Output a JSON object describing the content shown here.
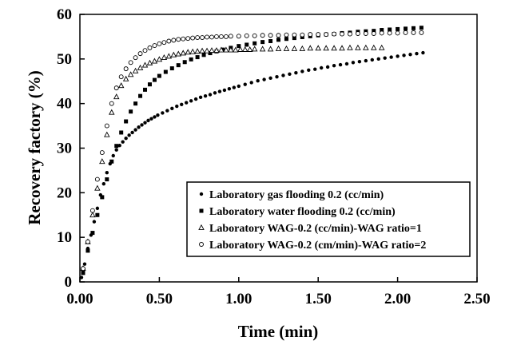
{
  "chart_data": {
    "type": "scatter",
    "xlabel": "Time (min)",
    "ylabel": "Recovery factory (%)",
    "xlim": [
      0,
      2.5
    ],
    "ylim": [
      0,
      60
    ],
    "x_ticks": [
      "0.00",
      "0.50",
      "1.00",
      "1.50",
      "2.00",
      "2.50"
    ],
    "y_ticks": [
      "0",
      "10",
      "20",
      "30",
      "40",
      "50",
      "60"
    ],
    "grid": false,
    "legend_position": "bottom-right",
    "series": [
      {
        "name": "Laboratory gas flooding 0.2 (cc/min)",
        "marker": "filled-circle",
        "x": [
          0.01,
          0.02,
          0.03,
          0.05,
          0.07,
          0.09,
          0.11,
          0.13,
          0.15,
          0.17,
          0.19,
          0.21,
          0.23,
          0.25,
          0.27,
          0.29,
          0.31,
          0.33,
          0.35,
          0.37,
          0.39,
          0.41,
          0.43,
          0.45,
          0.47,
          0.49,
          0.52,
          0.55,
          0.58,
          0.61,
          0.64,
          0.67,
          0.7,
          0.73,
          0.76,
          0.79,
          0.82,
          0.85,
          0.88,
          0.91,
          0.94,
          0.97,
          1.0,
          1.04,
          1.08,
          1.12,
          1.16,
          1.2,
          1.24,
          1.28,
          1.32,
          1.36,
          1.4,
          1.44,
          1.48,
          1.52,
          1.56,
          1.6,
          1.64,
          1.68,
          1.72,
          1.76,
          1.8,
          1.84,
          1.88,
          1.92,
          1.96,
          2.0,
          2.04,
          2.08,
          2.12,
          2.16
        ],
        "y": [
          1,
          2.5,
          4,
          7.5,
          10.5,
          13.5,
          16.5,
          19.5,
          22,
          24.5,
          26.5,
          28.3,
          29.6,
          30.6,
          31.4,
          32.2,
          32.9,
          33.5,
          34.1,
          34.7,
          35.2,
          35.7,
          36.2,
          36.6,
          37.0,
          37.4,
          37.9,
          38.4,
          38.9,
          39.4,
          39.8,
          40.2,
          40.6,
          41.0,
          41.4,
          41.7,
          42.0,
          42.4,
          42.7,
          43.0,
          43.3,
          43.6,
          43.9,
          44.3,
          44.7,
          45.1,
          45.4,
          45.7,
          46.0,
          46.3,
          46.6,
          46.9,
          47.2,
          47.5,
          47.7,
          48.0,
          48.2,
          48.5,
          48.7,
          48.9,
          49.2,
          49.4,
          49.6,
          49.8,
          50.0,
          50.2,
          50.4,
          50.6,
          50.8,
          51.0,
          51.2,
          51.4
        ]
      },
      {
        "name": "Laboratory water flooding 0.2 (cc/min)",
        "marker": "filled-square",
        "x": [
          0.02,
          0.05,
          0.08,
          0.11,
          0.14,
          0.17,
          0.2,
          0.23,
          0.26,
          0.29,
          0.32,
          0.35,
          0.38,
          0.41,
          0.44,
          0.47,
          0.5,
          0.54,
          0.58,
          0.62,
          0.66,
          0.7,
          0.74,
          0.78,
          0.82,
          0.86,
          0.9,
          0.95,
          1.0,
          1.05,
          1.1,
          1.15,
          1.2,
          1.25,
          1.3,
          1.35,
          1.4,
          1.45,
          1.5,
          1.55,
          1.6,
          1.65,
          1.7,
          1.75,
          1.8,
          1.85,
          1.9,
          1.95,
          2.0,
          2.05,
          2.1,
          2.15
        ],
        "y": [
          2,
          7,
          11,
          15,
          19,
          23,
          27,
          30.5,
          33.5,
          36,
          38.2,
          40,
          41.7,
          43.1,
          44.3,
          45.3,
          46.2,
          47.1,
          47.9,
          48.6,
          49.3,
          49.9,
          50.4,
          50.9,
          51.3,
          51.7,
          52.1,
          52.5,
          52.9,
          53.2,
          53.5,
          53.8,
          54.0,
          54.3,
          54.5,
          54.7,
          54.9,
          55.1,
          55.3,
          55.5,
          55.6,
          55.8,
          55.9,
          56.1,
          56.2,
          56.3,
          56.5,
          56.6,
          56.7,
          56.8,
          56.9,
          57.0
        ]
      },
      {
        "name": "Laboratory WAG-0.2 (cc/min)-WAG ratio=1",
        "marker": "open-triangle",
        "x": [
          0.02,
          0.05,
          0.08,
          0.11,
          0.14,
          0.17,
          0.2,
          0.23,
          0.26,
          0.29,
          0.32,
          0.35,
          0.38,
          0.41,
          0.44,
          0.47,
          0.5,
          0.53,
          0.56,
          0.59,
          0.62,
          0.65,
          0.68,
          0.71,
          0.74,
          0.77,
          0.8,
          0.83,
          0.86,
          0.89,
          0.92,
          0.95,
          0.98,
          1.01,
          1.04,
          1.07,
          1.1,
          1.15,
          1.2,
          1.25,
          1.3,
          1.35,
          1.4,
          1.45,
          1.5,
          1.55,
          1.6,
          1.65,
          1.7,
          1.75,
          1.8,
          1.85,
          1.9
        ],
        "y": [
          3,
          9,
          15,
          21,
          27,
          33,
          38,
          41.5,
          44,
          45.5,
          46.5,
          47.3,
          48.0,
          48.6,
          49.1,
          49.5,
          49.9,
          50.3,
          50.6,
          50.9,
          51.1,
          51.3,
          51.5,
          51.6,
          51.7,
          51.8,
          51.8,
          51.9,
          51.9,
          52.0,
          52.0,
          52.0,
          52.0,
          52.1,
          52.1,
          52.1,
          52.2,
          52.2,
          52.2,
          52.3,
          52.3,
          52.3,
          52.3,
          52.4,
          52.4,
          52.4,
          52.4,
          52.4,
          52.5,
          52.5,
          52.5,
          52.5,
          52.5
        ]
      },
      {
        "name": "Laboratory WAG-0.2 (cm/min)-WAG ratio=2",
        "marker": "open-circle",
        "x": [
          0.02,
          0.05,
          0.08,
          0.11,
          0.14,
          0.17,
          0.2,
          0.23,
          0.26,
          0.29,
          0.32,
          0.35,
          0.38,
          0.41,
          0.44,
          0.47,
          0.5,
          0.53,
          0.56,
          0.59,
          0.62,
          0.65,
          0.68,
          0.71,
          0.74,
          0.77,
          0.8,
          0.83,
          0.86,
          0.89,
          0.92,
          0.95,
          1.0,
          1.05,
          1.1,
          1.15,
          1.2,
          1.25,
          1.3,
          1.35,
          1.4,
          1.45,
          1.5,
          1.55,
          1.6,
          1.65,
          1.7,
          1.75,
          1.8,
          1.85,
          1.9,
          1.95,
          2.0,
          2.05,
          2.1,
          2.15
        ],
        "y": [
          3,
          9,
          16,
          23,
          29,
          35,
          40,
          43.5,
          46,
          47.8,
          49.2,
          50.3,
          51.2,
          51.9,
          52.5,
          53.0,
          53.4,
          53.7,
          54.0,
          54.2,
          54.4,
          54.5,
          54.6,
          54.7,
          54.8,
          54.8,
          54.9,
          54.9,
          55.0,
          55.0,
          55.0,
          55.1,
          55.1,
          55.2,
          55.2,
          55.3,
          55.3,
          55.3,
          55.4,
          55.4,
          55.4,
          55.5,
          55.5,
          55.5,
          55.6,
          55.6,
          55.6,
          55.7,
          55.7,
          55.7,
          55.8,
          55.8,
          55.8,
          55.9,
          55.9,
          55.9
        ]
      }
    ]
  }
}
